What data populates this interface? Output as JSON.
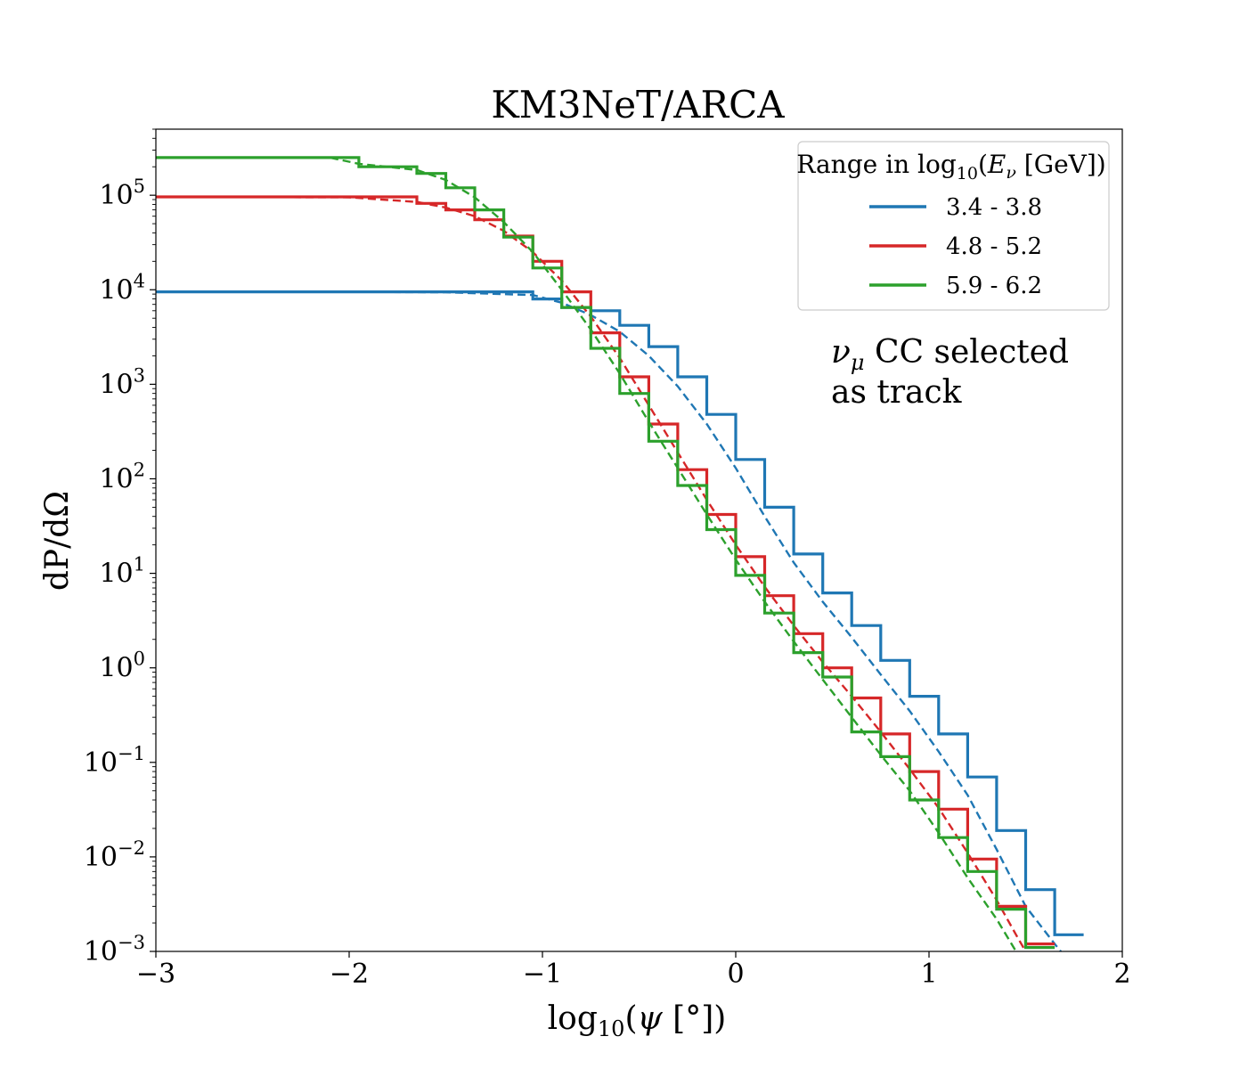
{
  "chart_data": {
    "type": "line",
    "title": "KM3NeT/ARCA",
    "xlabel": "log10(ψ [°])",
    "ylabel": "dP/dΩ",
    "yscale": "log",
    "xlim": [
      -3,
      2
    ],
    "ylim": [
      0.001,
      500000
    ],
    "x_ticks": [
      {
        "value": -3,
        "label": "−3"
      },
      {
        "value": -2,
        "label": "−2"
      },
      {
        "value": -1,
        "label": "−1"
      },
      {
        "value": 0,
        "label": "0"
      },
      {
        "value": 1,
        "label": "1"
      },
      {
        "value": 2,
        "label": "2"
      }
    ],
    "y_ticks": [
      {
        "value": 100000,
        "base": "10",
        "exp": "5"
      },
      {
        "value": 10000,
        "base": "10",
        "exp": "4"
      },
      {
        "value": 1000,
        "base": "10",
        "exp": "3"
      },
      {
        "value": 100,
        "base": "10",
        "exp": "2"
      },
      {
        "value": 10,
        "base": "10",
        "exp": "1"
      },
      {
        "value": 1,
        "base": "10",
        "exp": "0"
      },
      {
        "value": 0.1,
        "base": "10",
        "exp": "−1"
      },
      {
        "value": 0.01,
        "base": "10",
        "exp": "−2"
      },
      {
        "value": 0.001,
        "base": "10",
        "exp": "−3"
      }
    ],
    "legend": {
      "title": "Range in log10(Eν [GeV])",
      "position": "top-right"
    },
    "annotation": {
      "line1": "νμ CC selected",
      "line2": "as track"
    },
    "series": [
      {
        "name": "3.4 - 3.8",
        "color": "#1f77b4",
        "histogram": {
          "edges": [
            -3,
            -1.05,
            -0.9,
            -0.75,
            -0.6,
            -0.45,
            -0.3,
            -0.15,
            0,
            0.15,
            0.3,
            0.45,
            0.6,
            0.75,
            0.9,
            1.05,
            1.2,
            1.35,
            1.5,
            1.65,
            1.8
          ],
          "values": [
            9500,
            8000,
            6500,
            6000,
            4200,
            2500,
            1200,
            480,
            160,
            50,
            16,
            6.2,
            2.8,
            1.2,
            0.5,
            0.2,
            0.07,
            0.019,
            0.0045,
            0.0015
          ]
        },
        "fit": {
          "x": [
            -3,
            -2,
            -1.5,
            -1.05,
            -0.9,
            -0.75,
            -0.6,
            -0.45,
            -0.3,
            -0.15,
            0,
            0.15,
            0.3,
            0.45,
            0.6,
            0.75,
            0.9,
            1.05,
            1.2,
            1.35,
            1.5,
            1.65,
            1.7
          ],
          "y": [
            9500,
            9500,
            9400,
            8800,
            7300,
            5400,
            3600,
            2000,
            950,
            380,
            130,
            40,
            13,
            5,
            2.1,
            0.85,
            0.35,
            0.13,
            0.045,
            0.012,
            0.003,
            0.0012,
            0.0009
          ]
        }
      },
      {
        "name": "4.8 - 5.2",
        "color": "#d62728",
        "histogram": {
          "edges": [
            -3,
            -1.65,
            -1.5,
            -1.35,
            -1.2,
            -1.05,
            -0.9,
            -0.75,
            -0.6,
            -0.45,
            -0.3,
            -0.15,
            0,
            0.15,
            0.3,
            0.45,
            0.6,
            0.75,
            0.9,
            1.05,
            1.2,
            1.35,
            1.5,
            1.65
          ],
          "values": [
            96000,
            82000,
            70000,
            55000,
            37000,
            20000,
            9500,
            3500,
            1200,
            380,
            125,
            42,
            15,
            5.8,
            2.3,
            1.0,
            0.48,
            0.2,
            0.08,
            0.032,
            0.0095,
            0.003,
            0.0012
          ]
        },
        "fit": {
          "x": [
            -3,
            -2,
            -1.65,
            -1.5,
            -1.35,
            -1.2,
            -1.05,
            -0.9,
            -0.75,
            -0.6,
            -0.45,
            -0.3,
            -0.15,
            0,
            0.15,
            0.3,
            0.45,
            0.6,
            0.75,
            0.9,
            1.05,
            1.2,
            1.35,
            1.45,
            1.5
          ],
          "y": [
            96000,
            95000,
            85000,
            74000,
            60000,
            42000,
            25000,
            12500,
            5200,
            1900,
            600,
            190,
            60,
            20,
            7.2,
            2.8,
            1.15,
            0.5,
            0.21,
            0.085,
            0.033,
            0.011,
            0.0035,
            0.0015,
            0.001
          ]
        }
      },
      {
        "name": "5.9 - 6.2",
        "color": "#2ca02c",
        "histogram": {
          "edges": [
            -3,
            -1.95,
            -1.65,
            -1.5,
            -1.35,
            -1.2,
            -1.05,
            -0.9,
            -0.75,
            -0.6,
            -0.45,
            -0.3,
            -0.15,
            0,
            0.15,
            0.3,
            0.45,
            0.6,
            0.75,
            0.9,
            1.05,
            1.2,
            1.35,
            1.5,
            1.65
          ],
          "values": [
            250000,
            200000,
            170000,
            120000,
            70000,
            36000,
            17000,
            6500,
            2400,
            800,
            250,
            85,
            29,
            9.5,
            3.8,
            1.45,
            0.8,
            0.21,
            0.115,
            0.04,
            0.016,
            0.007,
            0.0028,
            0.0011
          ]
        },
        "fit": {
          "x": [
            -3,
            -2.1,
            -1.95,
            -1.65,
            -1.5,
            -1.35,
            -1.2,
            -1.05,
            -0.9,
            -0.75,
            -0.6,
            -0.45,
            -0.3,
            -0.15,
            0,
            0.15,
            0.3,
            0.45,
            0.6,
            0.75,
            0.9,
            1.05,
            1.2,
            1.35,
            1.45
          ],
          "y": [
            250000,
            250000,
            215000,
            185000,
            145000,
            95000,
            52000,
            25000,
            10000,
            3800,
            1300,
            400,
            130,
            42,
            14,
            5,
            1.9,
            0.75,
            0.3,
            0.12,
            0.05,
            0.018,
            0.006,
            0.0022,
            0.001
          ]
        }
      }
    ]
  }
}
